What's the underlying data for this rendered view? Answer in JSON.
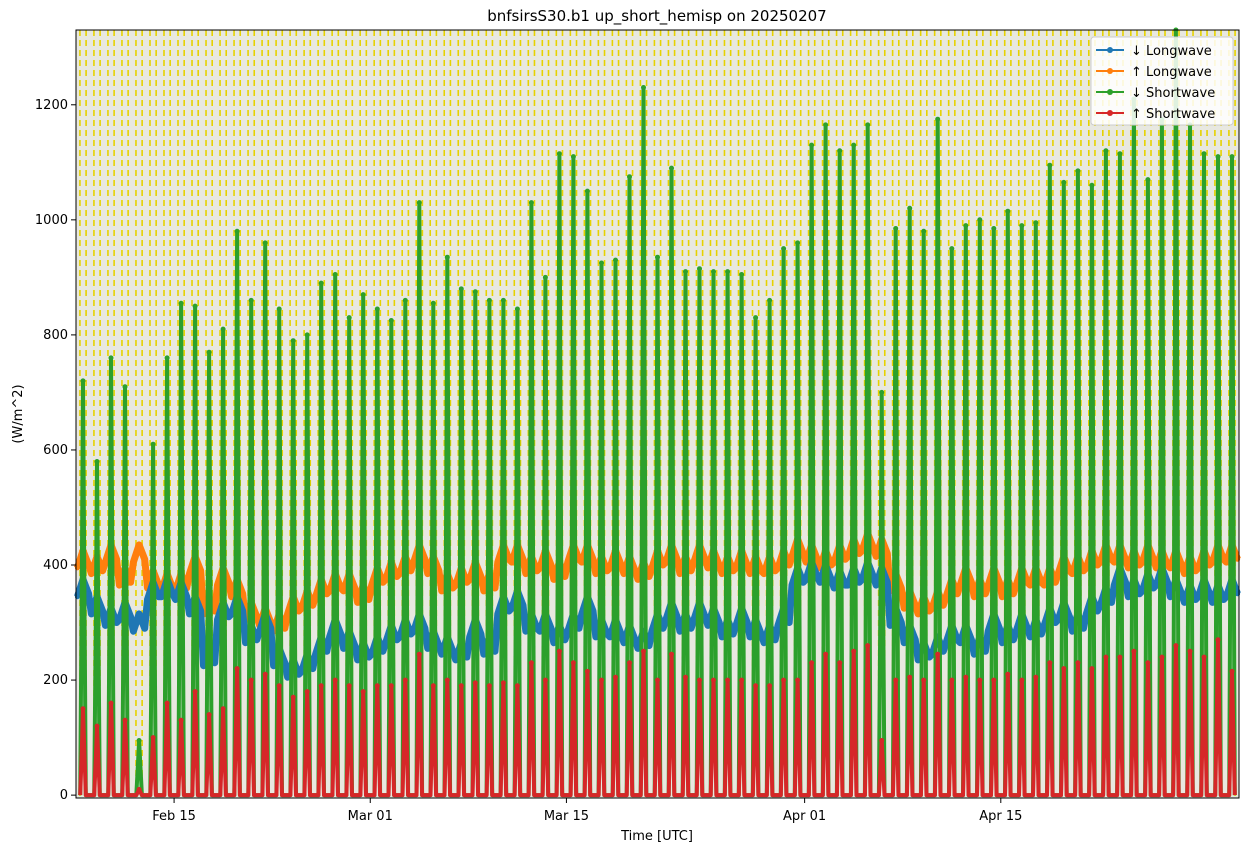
{
  "chart_data": {
    "type": "line",
    "title": "bnfsirsS30.b1 up_short_hemisp on 20250207",
    "xlabel": "Time [UTC]",
    "ylabel": "(W/m^2)",
    "xlim": [
      "2025-02-08",
      "2025-05-02"
    ],
    "ylim": [
      -5,
      1330
    ],
    "x_ticks": [
      {
        "date": "2025-02-15",
        "label": "Feb 15"
      },
      {
        "date": "2025-03-01",
        "label": "Mar 01"
      },
      {
        "date": "2025-03-15",
        "label": "Mar 15"
      },
      {
        "date": "2025-04-01",
        "label": "Apr 01"
      },
      {
        "date": "2025-04-15",
        "label": "Apr 15"
      }
    ],
    "y_ticks": [
      0,
      200,
      400,
      600,
      800,
      1000,
      1200
    ],
    "grid": false,
    "legend_position": "top-right",
    "background": "#e8e8e0",
    "night_marker_color": "#e6d200",
    "series": [
      {
        "name": "↓ Longwave",
        "color": "#1f77b4",
        "x": [
          "2025-02-08",
          "2025-02-09",
          "2025-02-10",
          "2025-02-11",
          "2025-02-12",
          "2025-02-13",
          "2025-02-14",
          "2025-02-15",
          "2025-02-16",
          "2025-02-17",
          "2025-02-18",
          "2025-02-19",
          "2025-02-20",
          "2025-02-21",
          "2025-02-22",
          "2025-02-23",
          "2025-02-24",
          "2025-02-25",
          "2025-02-26",
          "2025-02-27",
          "2025-02-28",
          "2025-03-01",
          "2025-03-02",
          "2025-03-03",
          "2025-03-04",
          "2025-03-05",
          "2025-03-06",
          "2025-03-07",
          "2025-03-08",
          "2025-03-09",
          "2025-03-10",
          "2025-03-11",
          "2025-03-12",
          "2025-03-13",
          "2025-03-14",
          "2025-03-15",
          "2025-03-16",
          "2025-03-17",
          "2025-03-18",
          "2025-03-19",
          "2025-03-20",
          "2025-03-21",
          "2025-03-22",
          "2025-03-23",
          "2025-03-24",
          "2025-03-25",
          "2025-03-26",
          "2025-03-27",
          "2025-03-28",
          "2025-03-29",
          "2025-03-30",
          "2025-03-31",
          "2025-04-01",
          "2025-04-02",
          "2025-04-03",
          "2025-04-04",
          "2025-04-05",
          "2025-04-06",
          "2025-04-07",
          "2025-04-08",
          "2025-04-09",
          "2025-04-10",
          "2025-04-11",
          "2025-04-12",
          "2025-04-13",
          "2025-04-14",
          "2025-04-15",
          "2025-04-16",
          "2025-04-17",
          "2025-04-18",
          "2025-04-19",
          "2025-04-20",
          "2025-04-21",
          "2025-04-22",
          "2025-04-23",
          "2025-04-24",
          "2025-04-25",
          "2025-04-26",
          "2025-04-27",
          "2025-04-28",
          "2025-04-29",
          "2025-04-30",
          "2025-05-01"
        ],
        "values": [
          360,
          330,
          310,
          320,
          300,
          355,
          360,
          355,
          330,
          240,
          320,
          330,
          280,
          300,
          240,
          220,
          230,
          260,
          290,
          270,
          250,
          260,
          280,
          290,
          300,
          270,
          260,
          250,
          290,
          260,
          330,
          340,
          300,
          300,
          280,
          300,
          330,
          290,
          290,
          280,
          270,
          300,
          320,
          300,
          320,
          310,
          290,
          310,
          290,
          280,
          310,
          380,
          390,
          385,
          375,
          380,
          390,
          380,
          310,
          280,
          250,
          260,
          280,
          280,
          260,
          300,
          280,
          300,
          290,
          310,
          320,
          300,
          330,
          345,
          380,
          360,
          370,
          380,
          360,
          350,
          360,
          350,
          360
        ]
      },
      {
        "name": "↑ Longwave",
        "color": "#ff7f0e",
        "x": [
          "2025-02-08",
          "2025-02-09",
          "2025-02-10",
          "2025-02-11",
          "2025-02-12",
          "2025-02-13",
          "2025-02-14",
          "2025-02-15",
          "2025-02-16",
          "2025-02-17",
          "2025-02-18",
          "2025-02-19",
          "2025-02-20",
          "2025-02-21",
          "2025-02-22",
          "2025-02-23",
          "2025-02-24",
          "2025-02-25",
          "2025-02-26",
          "2025-02-27",
          "2025-02-28",
          "2025-03-01",
          "2025-03-02",
          "2025-03-03",
          "2025-03-04",
          "2025-03-05",
          "2025-03-06",
          "2025-03-07",
          "2025-03-08",
          "2025-03-09",
          "2025-03-10",
          "2025-03-11",
          "2025-03-12",
          "2025-03-13",
          "2025-03-14",
          "2025-03-15",
          "2025-03-16",
          "2025-03-17",
          "2025-03-18",
          "2025-03-19",
          "2025-03-20",
          "2025-03-21",
          "2025-03-22",
          "2025-03-23",
          "2025-03-24",
          "2025-03-25",
          "2025-03-26",
          "2025-03-27",
          "2025-03-28",
          "2025-03-29",
          "2025-03-30",
          "2025-03-31",
          "2025-04-01",
          "2025-04-02",
          "2025-04-03",
          "2025-04-04",
          "2025-04-05",
          "2025-04-06",
          "2025-04-07",
          "2025-04-08",
          "2025-04-09",
          "2025-04-10",
          "2025-04-11",
          "2025-04-12",
          "2025-04-13",
          "2025-04-14",
          "2025-04-15",
          "2025-04-16",
          "2025-04-17",
          "2025-04-18",
          "2025-04-19",
          "2025-04-20",
          "2025-04-21",
          "2025-04-22",
          "2025-04-23",
          "2025-04-24",
          "2025-04-25",
          "2025-04-26",
          "2025-04-27",
          "2025-04-28",
          "2025-04-29",
          "2025-04-30",
          "2025-05-01"
        ],
        "values": [
          410,
          400,
          420,
          380,
          420,
          375,
          370,
          370,
          400,
          330,
          380,
          360,
          320,
          310,
          300,
          330,
          340,
          360,
          370,
          370,
          350,
          380,
          390,
          400,
          420,
          400,
          370,
          380,
          390,
          370,
          420,
          420,
          400,
          410,
          390,
          420,
          420,
          400,
          410,
          400,
          390,
          410,
          420,
          400,
          420,
          410,
          400,
          410,
          400,
          400,
          410,
          430,
          420,
          410,
          420,
          430,
          440,
          430,
          370,
          340,
          330,
          340,
          360,
          380,
          360,
          380,
          360,
          380,
          380,
          380,
          400,
          400,
          410,
          420,
          420,
          410,
          420,
          410,
          410,
          400,
          410,
          420,
          420
        ]
      },
      {
        "name": "↓ Shortwave",
        "color": "#2ca02c",
        "x": [
          "2025-02-08",
          "2025-02-09",
          "2025-02-10",
          "2025-02-11",
          "2025-02-12",
          "2025-02-13",
          "2025-02-14",
          "2025-02-15",
          "2025-02-16",
          "2025-02-17",
          "2025-02-18",
          "2025-02-19",
          "2025-02-20",
          "2025-02-21",
          "2025-02-22",
          "2025-02-23",
          "2025-02-24",
          "2025-02-25",
          "2025-02-26",
          "2025-02-27",
          "2025-02-28",
          "2025-03-01",
          "2025-03-02",
          "2025-03-03",
          "2025-03-04",
          "2025-03-05",
          "2025-03-06",
          "2025-03-07",
          "2025-03-08",
          "2025-03-09",
          "2025-03-10",
          "2025-03-11",
          "2025-03-12",
          "2025-03-13",
          "2025-03-14",
          "2025-03-15",
          "2025-03-16",
          "2025-03-17",
          "2025-03-18",
          "2025-03-19",
          "2025-03-20",
          "2025-03-21",
          "2025-03-22",
          "2025-03-23",
          "2025-03-24",
          "2025-03-25",
          "2025-03-26",
          "2025-03-27",
          "2025-03-28",
          "2025-03-29",
          "2025-03-30",
          "2025-03-31",
          "2025-04-01",
          "2025-04-02",
          "2025-04-03",
          "2025-04-04",
          "2025-04-05",
          "2025-04-06",
          "2025-04-07",
          "2025-04-08",
          "2025-04-09",
          "2025-04-10",
          "2025-04-11",
          "2025-04-12",
          "2025-04-13",
          "2025-04-14",
          "2025-04-15",
          "2025-04-16",
          "2025-04-17",
          "2025-04-18",
          "2025-04-19",
          "2025-04-20",
          "2025-04-21",
          "2025-04-22",
          "2025-04-23",
          "2025-04-24",
          "2025-04-25",
          "2025-04-26",
          "2025-04-27",
          "2025-04-28",
          "2025-04-29",
          "2025-04-30",
          "2025-05-01"
        ],
        "values": [
          720,
          580,
          760,
          710,
          95,
          610,
          760,
          855,
          850,
          770,
          810,
          980,
          860,
          960,
          845,
          790,
          800,
          890,
          905,
          830,
          870,
          845,
          825,
          860,
          1030,
          855,
          935,
          880,
          875,
          860,
          860,
          845,
          1030,
          900,
          1115,
          1110,
          1050,
          925,
          930,
          1075,
          1230,
          935,
          1090,
          910,
          915,
          910,
          910,
          905,
          830,
          860,
          950,
          960,
          1130,
          1165,
          1120,
          1130,
          1165,
          700,
          985,
          1020,
          980,
          1175,
          950,
          990,
          1000,
          985,
          1015,
          990,
          995,
          1095,
          1065,
          1085,
          1060,
          1120,
          1115,
          1210,
          1070,
          1175,
          1330,
          1165,
          1115,
          1110,
          1110
        ]
      },
      {
        "name": "↑ Shortwave",
        "color": "#d62728",
        "x": [
          "2025-02-08",
          "2025-02-09",
          "2025-02-10",
          "2025-02-11",
          "2025-02-12",
          "2025-02-13",
          "2025-02-14",
          "2025-02-15",
          "2025-02-16",
          "2025-02-17",
          "2025-02-18",
          "2025-02-19",
          "2025-02-20",
          "2025-02-21",
          "2025-02-22",
          "2025-02-23",
          "2025-02-24",
          "2025-02-25",
          "2025-02-26",
          "2025-02-27",
          "2025-02-28",
          "2025-03-01",
          "2025-03-02",
          "2025-03-03",
          "2025-03-04",
          "2025-03-05",
          "2025-03-06",
          "2025-03-07",
          "2025-03-08",
          "2025-03-09",
          "2025-03-10",
          "2025-03-11",
          "2025-03-12",
          "2025-03-13",
          "2025-03-14",
          "2025-03-15",
          "2025-03-16",
          "2025-03-17",
          "2025-03-18",
          "2025-03-19",
          "2025-03-20",
          "2025-03-21",
          "2025-03-22",
          "2025-03-23",
          "2025-03-24",
          "2025-03-25",
          "2025-03-26",
          "2025-03-27",
          "2025-03-28",
          "2025-03-29",
          "2025-03-30",
          "2025-03-31",
          "2025-04-01",
          "2025-04-02",
          "2025-04-03",
          "2025-04-04",
          "2025-04-05",
          "2025-04-06",
          "2025-04-07",
          "2025-04-08",
          "2025-04-09",
          "2025-04-10",
          "2025-04-11",
          "2025-04-12",
          "2025-04-13",
          "2025-04-14",
          "2025-04-15",
          "2025-04-16",
          "2025-04-17",
          "2025-04-18",
          "2025-04-19",
          "2025-04-20",
          "2025-04-21",
          "2025-04-22",
          "2025-04-23",
          "2025-04-24",
          "2025-04-25",
          "2025-04-26",
          "2025-04-27",
          "2025-04-28",
          "2025-04-29",
          "2025-04-30",
          "2025-05-01"
        ],
        "values": [
          150,
          120,
          160,
          130,
          10,
          100,
          160,
          130,
          180,
          140,
          150,
          220,
          200,
          210,
          190,
          170,
          180,
          190,
          200,
          190,
          180,
          190,
          190,
          200,
          245,
          190,
          200,
          190,
          195,
          190,
          195,
          190,
          230,
          200,
          250,
          230,
          215,
          200,
          205,
          230,
          250,
          200,
          245,
          205,
          200,
          200,
          200,
          200,
          190,
          190,
          200,
          200,
          230,
          245,
          230,
          250,
          260,
          95,
          200,
          205,
          200,
          245,
          200,
          205,
          200,
          200,
          210,
          200,
          205,
          230,
          220,
          230,
          220,
          240,
          240,
          250,
          230,
          240,
          260,
          250,
          240,
          270,
          215
        ]
      }
    ]
  }
}
